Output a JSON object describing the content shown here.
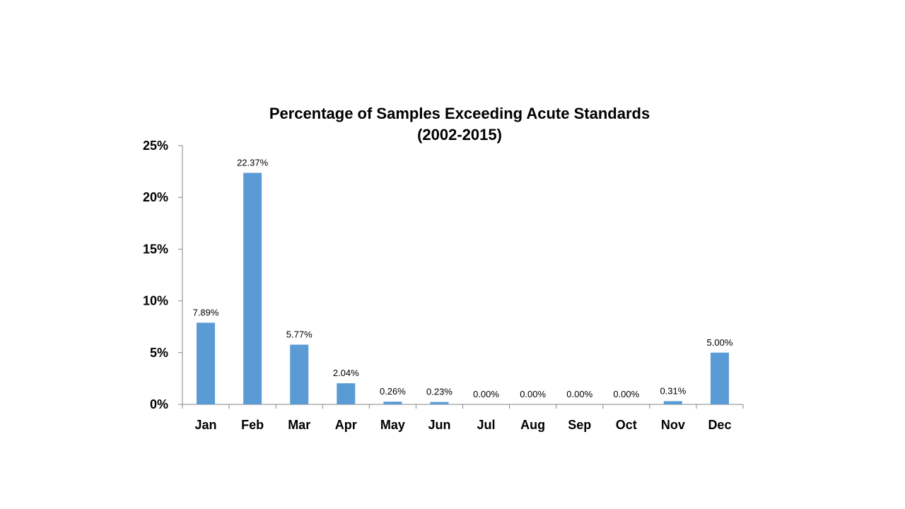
{
  "chart_data": {
    "type": "bar",
    "title": "Percentage of Samples Exceeding Acute Standards",
    "subtitle": "(2002-2015)",
    "xlabel": "",
    "ylabel": "",
    "categories": [
      "Jan",
      "Feb",
      "Mar",
      "Apr",
      "May",
      "Jun",
      "Jul",
      "Aug",
      "Sep",
      "Oct",
      "Nov",
      "Dec"
    ],
    "values": [
      7.89,
      22.37,
      5.77,
      2.04,
      0.26,
      0.23,
      0.0,
      0.0,
      0.0,
      0.0,
      0.31,
      5.0
    ],
    "data_labels": [
      "7.89%",
      "22.37%",
      "5.77%",
      "2.04%",
      "0.26%",
      "0.23%",
      "0.00%",
      "0.00%",
      "0.00%",
      "0.00%",
      "0.31%",
      "5.00%"
    ],
    "y_ticks": [
      0,
      5,
      10,
      15,
      20,
      25
    ],
    "y_tick_labels": [
      "0%",
      "5%",
      "10%",
      "15%",
      "20%",
      "25%"
    ],
    "ylim": [
      0,
      25
    ],
    "grid": false,
    "legend": "none",
    "bar_color": "#5B9BD5",
    "axis_color": "#868686"
  }
}
